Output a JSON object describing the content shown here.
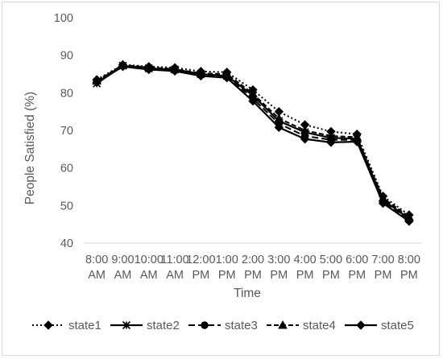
{
  "chart_data": {
    "type": "line",
    "title": "",
    "xlabel": "Time",
    "ylabel": "People Satisfied (%)",
    "ylim": [
      40,
      100
    ],
    "yticks": [
      40,
      50,
      60,
      70,
      80,
      90,
      100
    ],
    "grid": false,
    "legend_position": "bottom",
    "categories": [
      [
        "8:00",
        "AM"
      ],
      [
        "9:00",
        "AM"
      ],
      [
        "10:00",
        "AM"
      ],
      [
        "11:00",
        "AM"
      ],
      [
        "12:00",
        "PM"
      ],
      [
        "1:00",
        "PM"
      ],
      [
        "2:00",
        "PM"
      ],
      [
        "3:00",
        "PM"
      ],
      [
        "4:00",
        "PM"
      ],
      [
        "5:00",
        "PM"
      ],
      [
        "6:00",
        "PM"
      ],
      [
        "7:00",
        "PM"
      ],
      [
        "8:00",
        "PM"
      ]
    ],
    "series": [
      {
        "name": "state1",
        "marker": "diamond",
        "line": "dotted",
        "color": "#000000",
        "values": [
          83.5,
          87.5,
          87.0,
          86.7,
          85.7,
          85.5,
          80.8,
          75.0,
          71.5,
          69.7,
          69.0,
          52.5,
          47.5
        ]
      },
      {
        "name": "state2",
        "marker": "star",
        "line": "solid",
        "color": "#000000",
        "values": [
          82.5,
          87.2,
          86.5,
          86.2,
          85.0,
          84.5,
          79.3,
          72.5,
          69.5,
          68.0,
          67.8,
          51.5,
          46.5
        ]
      },
      {
        "name": "state3",
        "marker": "circle",
        "line": "dashed",
        "color": "#000000",
        "values": [
          83.0,
          87.2,
          86.5,
          86.0,
          84.8,
          84.5,
          78.5,
          71.8,
          68.5,
          67.5,
          67.5,
          51.0,
          46.2
        ]
      },
      {
        "name": "state4",
        "marker": "triangle",
        "line": "dash",
        "color": "#000000",
        "values": [
          83.2,
          87.4,
          86.8,
          86.3,
          85.2,
          85.0,
          79.8,
          73.2,
          70.0,
          68.5,
          68.2,
          52.0,
          47.0
        ]
      },
      {
        "name": "state5",
        "marker": "diamond",
        "line": "solid",
        "color": "#000000",
        "values": [
          82.8,
          87.0,
          86.2,
          85.8,
          84.5,
          84.0,
          77.8,
          70.8,
          67.7,
          66.8,
          67.0,
          50.6,
          45.8
        ]
      }
    ]
  }
}
